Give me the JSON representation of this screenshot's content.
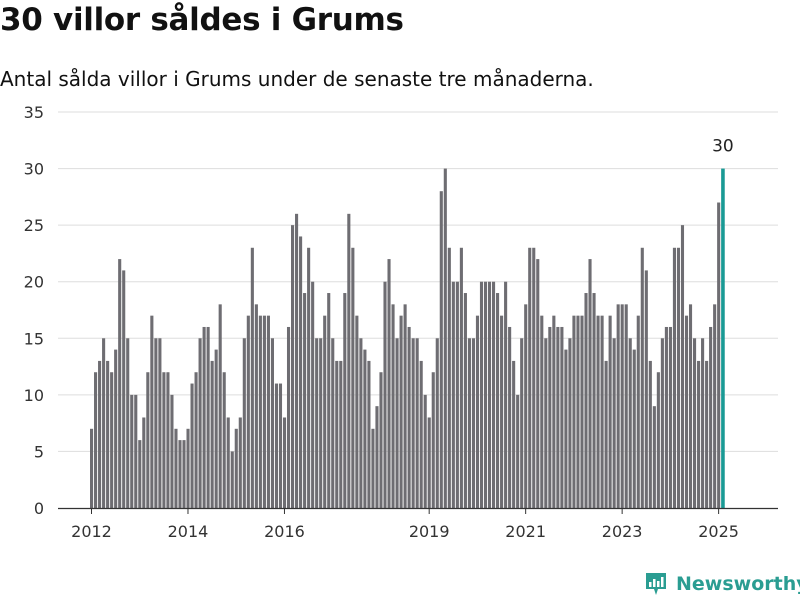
{
  "title": "30 villor såldes i Grums",
  "subtitle": "Antal sålda villor i Grums under de senaste tre månaderna.",
  "brand": {
    "name": "Newsworthy",
    "icon": "newsworthy-logo-icon"
  },
  "colors": {
    "bar": "#6e6d72",
    "highlight": "#1a9a95",
    "grid": "#dddddd",
    "axis": "#333333"
  },
  "chart_data": {
    "type": "bar",
    "x_start": "2012-01",
    "interval": "month",
    "ylim": [
      0,
      35
    ],
    "yticks": [
      0,
      5,
      10,
      15,
      20,
      25,
      30,
      35
    ],
    "xticks": [
      {
        "label": "2012",
        "date": "2012-01"
      },
      {
        "label": "2014",
        "date": "2014-01"
      },
      {
        "label": "2016",
        "date": "2016-01"
      },
      {
        "label": "2019",
        "date": "2019-01"
      },
      {
        "label": "2021",
        "date": "2021-01"
      },
      {
        "label": "2023",
        "date": "2023-01"
      },
      {
        "label": "2025",
        "date": "2025-01"
      }
    ],
    "values": [
      7,
      12,
      13,
      15,
      13,
      12,
      14,
      22,
      21,
      15,
      10,
      10,
      6,
      8,
      12,
      17,
      15,
      15,
      12,
      12,
      10,
      7,
      6,
      6,
      7,
      11,
      12,
      15,
      16,
      16,
      13,
      14,
      18,
      12,
      8,
      5,
      7,
      8,
      15,
      17,
      23,
      18,
      17,
      17,
      17,
      15,
      11,
      11,
      8,
      16,
      25,
      26,
      24,
      19,
      23,
      20,
      15,
      15,
      17,
      19,
      15,
      13,
      13,
      19,
      26,
      23,
      17,
      15,
      14,
      13,
      7,
      9,
      12,
      20,
      22,
      18,
      15,
      17,
      18,
      16,
      15,
      15,
      13,
      10,
      8,
      12,
      15,
      28,
      30,
      23,
      20,
      20,
      23,
      19,
      15,
      15,
      17,
      20,
      20,
      20,
      20,
      19,
      17,
      20,
      16,
      13,
      10,
      15,
      18,
      23,
      23,
      22,
      17,
      15,
      16,
      17,
      16,
      16,
      14,
      15,
      17,
      17,
      17,
      19,
      22,
      19,
      17,
      17,
      13,
      17,
      15,
      18,
      18,
      18,
      15,
      14,
      17,
      23,
      21,
      13,
      9,
      12,
      15,
      16,
      16,
      23,
      23,
      25,
      17,
      18,
      15,
      13,
      15,
      13,
      16,
      18,
      27,
      30
    ],
    "highlight_last": true,
    "annotation": {
      "label": "30"
    }
  }
}
